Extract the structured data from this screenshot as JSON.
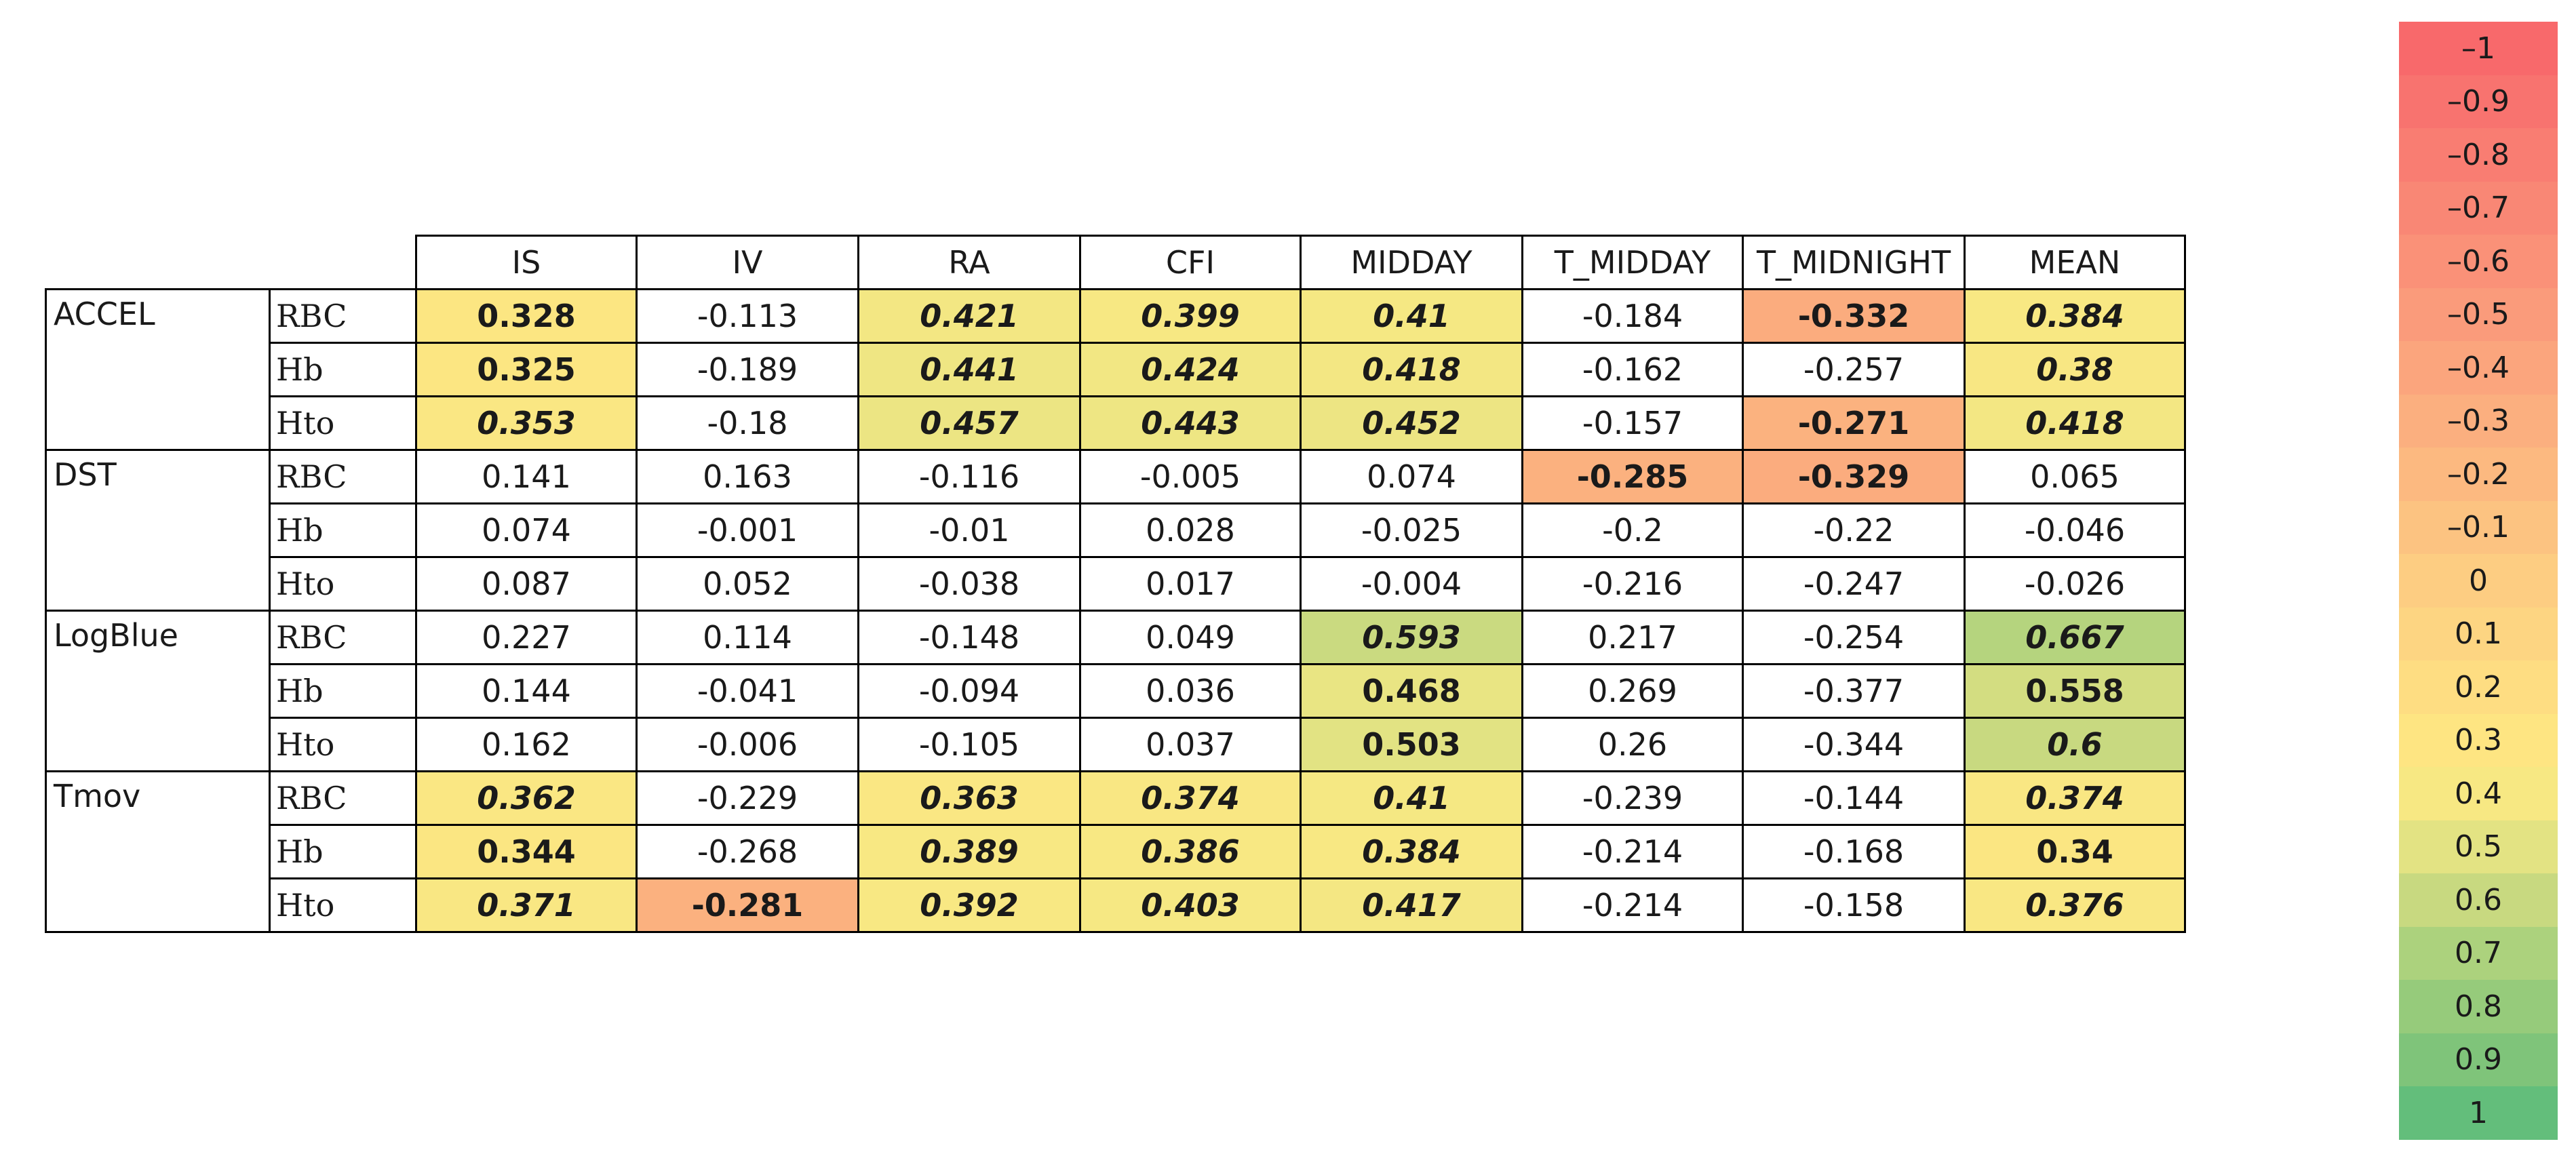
{
  "chart_data": {
    "type": "heatmap",
    "title": "",
    "columns": [
      "IS",
      "IV",
      "RA",
      "CFI",
      "MIDDAY",
      "T_MIDDAY",
      "T_MIDNIGHT",
      "MEAN"
    ],
    "groups": [
      {
        "label": "ACCEL",
        "rows": [
          {
            "label": "RBC",
            "values": [
              "0.328",
              "-0.113",
              "0.421",
              "0.399",
              "0.41",
              "-0.184",
              "-0.332",
              "0.384"
            ],
            "bold": [
              true,
              false,
              true,
              true,
              true,
              false,
              true,
              true
            ],
            "italic": [
              false,
              false,
              true,
              true,
              true,
              false,
              false,
              true
            ]
          },
          {
            "label": "Hb",
            "values": [
              "0.325",
              "-0.189",
              "0.441",
              "0.424",
              "0.418",
              "-0.162",
              "-0.257",
              "0.38"
            ],
            "bold": [
              true,
              false,
              true,
              true,
              true,
              false,
              false,
              true
            ],
            "italic": [
              false,
              false,
              true,
              true,
              true,
              false,
              false,
              true
            ]
          },
          {
            "label": "Hto",
            "values": [
              "0.353",
              "-0.18",
              "0.457",
              "0.443",
              "0.452",
              "-0.157",
              "-0.271",
              "0.418"
            ],
            "bold": [
              true,
              false,
              true,
              true,
              true,
              false,
              true,
              true
            ],
            "italic": [
              true,
              false,
              true,
              true,
              true,
              false,
              false,
              true
            ]
          }
        ]
      },
      {
        "label": "DST",
        "rows": [
          {
            "label": "RBC",
            "values": [
              "0.141",
              "0.163",
              "-0.116",
              "-0.005",
              "0.074",
              "-0.285",
              "-0.329",
              "0.065"
            ],
            "bold": [
              false,
              false,
              false,
              false,
              false,
              true,
              true,
              false
            ],
            "italic": [
              false,
              false,
              false,
              false,
              false,
              false,
              false,
              false
            ]
          },
          {
            "label": "Hb",
            "values": [
              "0.074",
              "-0.001",
              "-0.01",
              "0.028",
              "-0.025",
              "-0.2",
              "-0.22",
              "-0.046"
            ],
            "bold": [
              false,
              false,
              false,
              false,
              false,
              false,
              false,
              false
            ],
            "italic": [
              false,
              false,
              false,
              false,
              false,
              false,
              false,
              false
            ]
          },
          {
            "label": "Hto",
            "values": [
              "0.087",
              "0.052",
              "-0.038",
              "0.017",
              "-0.004",
              "-0.216",
              "-0.247",
              "-0.026"
            ],
            "bold": [
              false,
              false,
              false,
              false,
              false,
              false,
              false,
              false
            ],
            "italic": [
              false,
              false,
              false,
              false,
              false,
              false,
              false,
              false
            ]
          }
        ]
      },
      {
        "label": "LogBlue",
        "rows": [
          {
            "label": "RBC",
            "values": [
              "0.227",
              "0.114",
              "-0.148",
              "0.049",
              "0.593",
              "0.217",
              "-0.254",
              "0.667"
            ],
            "bold": [
              false,
              false,
              false,
              false,
              true,
              false,
              false,
              true
            ],
            "italic": [
              false,
              false,
              false,
              false,
              true,
              false,
              false,
              true
            ]
          },
          {
            "label": "Hb",
            "values": [
              "0.144",
              "-0.041",
              "-0.094",
              "0.036",
              "0.468",
              "0.269",
              "-0.377",
              "0.558"
            ],
            "bold": [
              false,
              false,
              false,
              false,
              true,
              false,
              false,
              true
            ],
            "italic": [
              false,
              false,
              false,
              false,
              false,
              false,
              false,
              false
            ]
          },
          {
            "label": "Hto",
            "values": [
              "0.162",
              "-0.006",
              "-0.105",
              "0.037",
              "0.503",
              "0.26",
              "-0.344",
              "0.6"
            ],
            "bold": [
              false,
              false,
              false,
              false,
              true,
              false,
              false,
              true
            ],
            "italic": [
              false,
              false,
              false,
              false,
              false,
              false,
              false,
              true
            ]
          }
        ]
      },
      {
        "label": "Tmov",
        "rows": [
          {
            "label": "RBC",
            "values": [
              "0.362",
              "-0.229",
              "0.363",
              "0.374",
              "0.41",
              "-0.239",
              "-0.144",
              "0.374"
            ],
            "bold": [
              true,
              false,
              true,
              true,
              true,
              false,
              false,
              true
            ],
            "italic": [
              true,
              false,
              true,
              true,
              true,
              false,
              false,
              true
            ]
          },
          {
            "label": "Hb",
            "values": [
              "0.344",
              "-0.268",
              "0.389",
              "0.386",
              "0.384",
              "-0.214",
              "-0.168",
              "0.34"
            ],
            "bold": [
              true,
              false,
              true,
              true,
              true,
              false,
              false,
              true
            ],
            "italic": [
              false,
              false,
              true,
              true,
              true,
              false,
              false,
              false
            ]
          },
          {
            "label": "Hto",
            "values": [
              "0.371",
              "-0.281",
              "0.392",
              "0.403",
              "0.417",
              "-0.214",
              "-0.158",
              "0.376"
            ],
            "bold": [
              true,
              true,
              true,
              true,
              true,
              false,
              false,
              true
            ],
            "italic": [
              true,
              false,
              true,
              true,
              true,
              false,
              false,
              true
            ]
          }
        ]
      }
    ],
    "highlight_threshold": 0.27,
    "color_scale": [
      {
        "label": "–1",
        "value": -1.0,
        "color": "#f8696b"
      },
      {
        "label": "–0.9",
        "value": -0.9,
        "color": "#f8736f"
      },
      {
        "label": "–0.8",
        "value": -0.8,
        "color": "#f97d72"
      },
      {
        "label": "–0.7",
        "value": -0.7,
        "color": "#f98775"
      },
      {
        "label": "–0.6",
        "value": -0.6,
        "color": "#fa9178"
      },
      {
        "label": "–0.5",
        "value": -0.5,
        "color": "#fa9b7b"
      },
      {
        "label": "–0.4",
        "value": -0.4,
        "color": "#fba57d"
      },
      {
        "label": "–0.3",
        "value": -0.3,
        "color": "#fbaf7f"
      },
      {
        "label": "–0.2",
        "value": -0.2,
        "color": "#fcb980"
      },
      {
        "label": "–0.1",
        "value": -0.1,
        "color": "#fcc381"
      },
      {
        "label": "0",
        "value": 0.0,
        "color": "#fdcd82"
      },
      {
        "label": "0.1",
        "value": 0.1,
        "color": "#fdd582"
      },
      {
        "label": "0.2",
        "value": 0.2,
        "color": "#fedd82"
      },
      {
        "label": "0.3",
        "value": 0.3,
        "color": "#fee582"
      },
      {
        "label": "0.4",
        "value": 0.4,
        "color": "#f7e883"
      },
      {
        "label": "0.5",
        "value": 0.5,
        "color": "#e3e383"
      },
      {
        "label": "0.6",
        "value": 0.6,
        "color": "#c8d980"
      },
      {
        "label": "0.7",
        "value": 0.7,
        "color": "#acd27d"
      },
      {
        "label": "0.8",
        "value": 0.8,
        "color": "#96cb7b"
      },
      {
        "label": "0.9",
        "value": 0.9,
        "color": "#7fc47a"
      },
      {
        "label": "1",
        "value": 1.0,
        "color": "#63be7b"
      }
    ]
  }
}
